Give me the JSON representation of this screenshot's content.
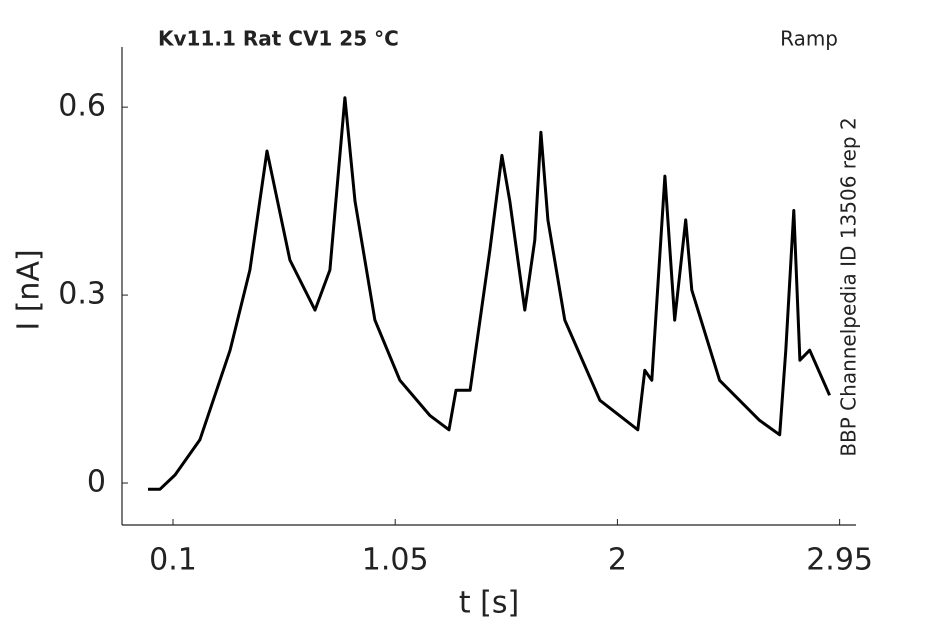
{
  "chart_data": {
    "type": "line",
    "title": "Kv11.1  Rat  CV1  25 °C",
    "protocol": "Ramp",
    "side_note": "BBP Channelpedia ID 13506 rep 2",
    "x_label": "t [s]",
    "y_label": "I [nA]",
    "x": [
      -0.007,
      0.044,
      0.109,
      0.215,
      0.344,
      0.429,
      0.502,
      0.6,
      0.707,
      0.771,
      0.835,
      0.878,
      0.963,
      1.07,
      1.198,
      1.28,
      1.31,
      1.37,
      1.455,
      1.506,
      1.54,
      1.604,
      1.647,
      1.673,
      1.703,
      1.775,
      1.925,
      2.087,
      2.117,
      2.147,
      2.203,
      2.245,
      2.292,
      2.318,
      2.437,
      2.608,
      2.694,
      2.72,
      2.754,
      2.78,
      2.822,
      2.907
    ],
    "values": [
      -0.01,
      -0.01,
      0.013,
      0.069,
      0.212,
      0.34,
      0.53,
      0.356,
      0.276,
      0.34,
      0.615,
      0.45,
      0.26,
      0.164,
      0.108,
      0.085,
      0.148,
      0.148,
      0.372,
      0.523,
      0.45,
      0.276,
      0.388,
      0.56,
      0.42,
      0.26,
      0.132,
      0.085,
      0.18,
      0.164,
      0.49,
      0.26,
      0.42,
      0.308,
      0.164,
      0.1,
      0.077,
      0.212,
      0.435,
      0.196,
      0.212,
      0.14
    ],
    "color": "#000000",
    "xlim": [
      -0.118,
      3.02
    ],
    "ylim": [
      -0.067,
      0.696
    ],
    "xticks": [
      0.1,
      1.05,
      2,
      2.95
    ],
    "yticks": [
      0,
      0.3,
      0.6
    ],
    "grid": false
  }
}
